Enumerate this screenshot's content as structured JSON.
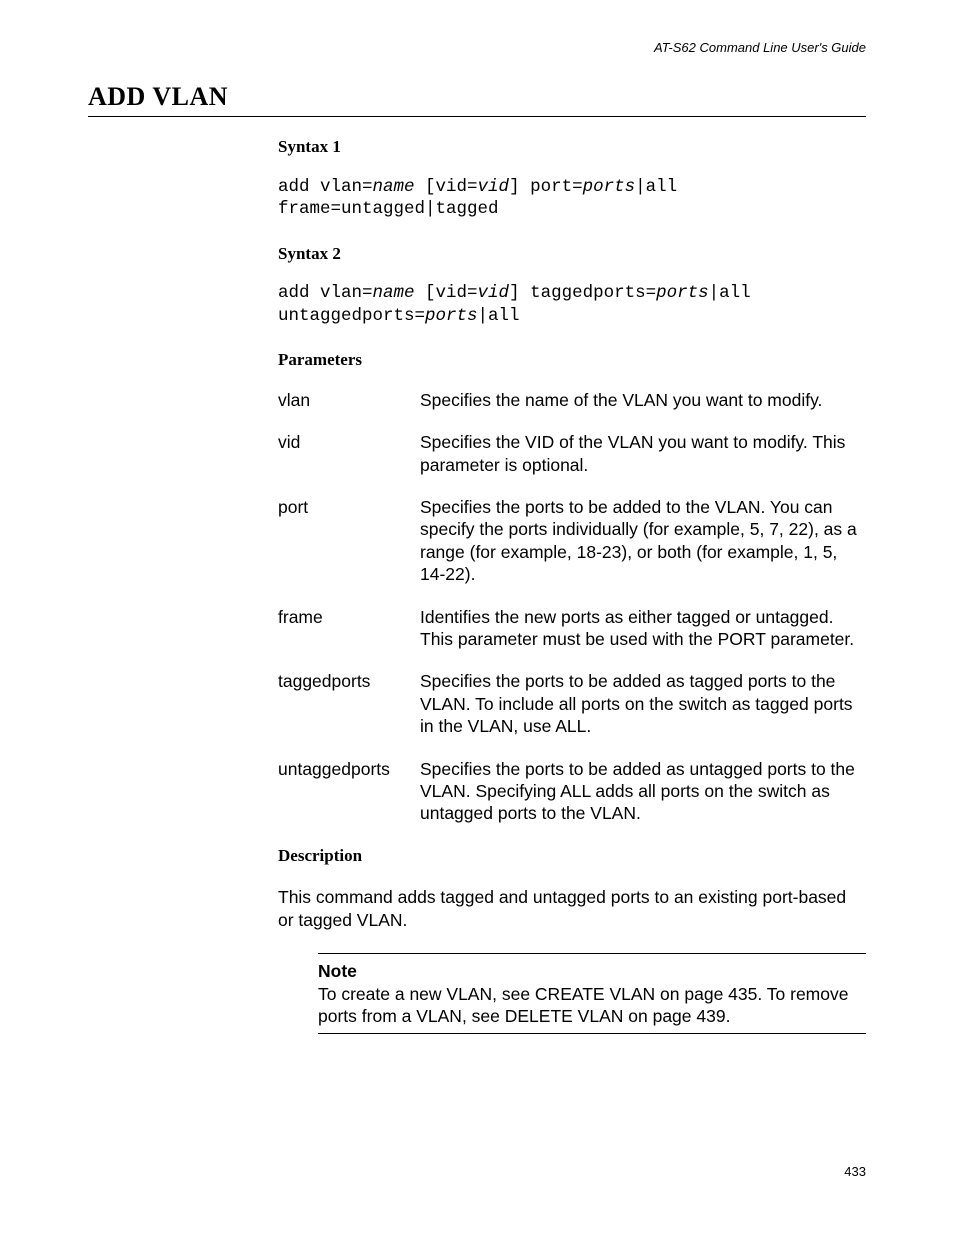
{
  "running_head": "AT-S62 Command Line User's Guide",
  "command_title": "ADD VLAN",
  "syntax1": {
    "heading": "Syntax 1",
    "tokens": [
      {
        "t": "add vlan=",
        "s": "k"
      },
      {
        "t": "name",
        "s": "i"
      },
      {
        "t": " [vid=",
        "s": "k"
      },
      {
        "t": "vid",
        "s": "i"
      },
      {
        "t": "] port=",
        "s": "k"
      },
      {
        "t": "ports",
        "s": "i"
      },
      {
        "t": "|all",
        "s": "k"
      },
      {
        "t": "\n",
        "s": "k"
      },
      {
        "t": "frame=untagged|tagged",
        "s": "k"
      }
    ]
  },
  "syntax2": {
    "heading": "Syntax 2",
    "tokens": [
      {
        "t": "add vlan=",
        "s": "k"
      },
      {
        "t": "name",
        "s": "i"
      },
      {
        "t": " [vid=",
        "s": "k"
      },
      {
        "t": "vid",
        "s": "i"
      },
      {
        "t": "] taggedports=",
        "s": "k"
      },
      {
        "t": "ports",
        "s": "i"
      },
      {
        "t": "|all",
        "s": "k"
      },
      {
        "t": "\n",
        "s": "k"
      },
      {
        "t": "untaggedports=",
        "s": "k"
      },
      {
        "t": "ports",
        "s": "i"
      },
      {
        "t": "|all",
        "s": "k"
      }
    ]
  },
  "parameters": {
    "heading": "Parameters",
    "items": [
      {
        "name": "vlan",
        "desc": "Specifies the name of the VLAN you want to modify."
      },
      {
        "name": "vid",
        "desc": "Specifies the VID of the VLAN you want to modify. This parameter is optional."
      },
      {
        "name": "port",
        "desc": "Specifies the ports to be added to the VLAN. You can specify the ports individually (for example, 5, 7, 22), as a range (for example, 18-23), or both (for example, 1, 5, 14-22)."
      },
      {
        "name": "frame",
        "desc": "Identifies the new ports as either tagged or untagged. This parameter must be used with the PORT parameter."
      },
      {
        "name": "taggedports",
        "desc": "Specifies the ports to be added as tagged ports to the VLAN. To include all ports on the switch as tagged ports in the VLAN, use ALL."
      },
      {
        "name": "untaggedports",
        "desc": "Specifies the ports to be added as untagged ports to the VLAN. Specifying ALL adds all ports on the switch as untagged ports to the VLAN."
      }
    ]
  },
  "description": {
    "heading": "Description",
    "text": "This command adds tagged and untagged ports to an existing port-based or tagged VLAN."
  },
  "note": {
    "label": "Note",
    "text": "To create a new VLAN, see CREATE VLAN on page 435. To remove ports from a VLAN, see DELETE VLAN on page 439."
  },
  "page_number": "433"
}
